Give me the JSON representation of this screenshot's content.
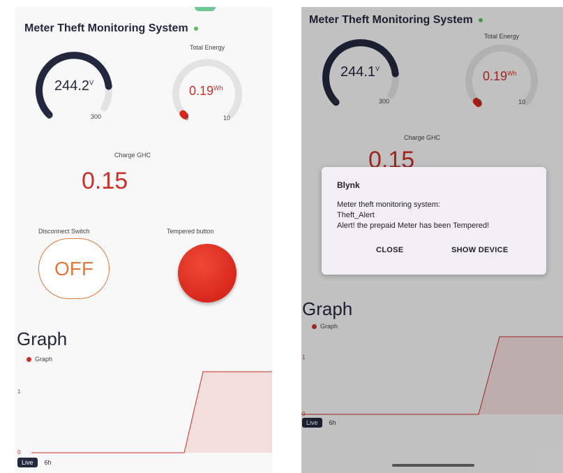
{
  "app": {
    "title": "Meter Theft Monitoring System",
    "status_color": "#5bbf5b",
    "brand_navy": "#23283e",
    "accent_red": "#c8302a",
    "switch_orange": "#e07a3a"
  },
  "screens": [
    {
      "voltage": {
        "value": "244.2",
        "unit": "V",
        "min": "0",
        "max": "300",
        "fraction": 0.81
      },
      "energy": {
        "label": "Total Energy",
        "value": "0.19",
        "unit": "Wh",
        "min": "0",
        "max": "10",
        "fraction": 0.02
      },
      "charge": {
        "label": "Charge GHC",
        "value": "0.15"
      },
      "disconnect_switch": {
        "label": "Disconnect Switch",
        "state": "OFF"
      },
      "tempered_button": {
        "label": "Tempered button"
      },
      "graph": {
        "heading": "Graph",
        "legend": "Graph",
        "tick_1": "1",
        "tick_0": "0",
        "range_live": "Live",
        "range_6h": "6h"
      }
    },
    {
      "voltage": {
        "value": "244.1",
        "unit": "V",
        "min": "0",
        "max": "300",
        "fraction": 0.81
      },
      "energy": {
        "label": "Total Energy",
        "value": "0.19",
        "unit": "Wh",
        "min": "0",
        "max": "10",
        "fraction": 0.02
      },
      "charge": {
        "label": "Charge GHC",
        "value": "0.15"
      },
      "graph": {
        "heading": "Graph",
        "legend": "Graph",
        "tick_1": "1",
        "tick_0": "0",
        "range_live": "Live",
        "range_6h": "6h"
      },
      "dialog": {
        "title": "Blynk",
        "line1": "Meter theft monitoring system:",
        "line2": "Theft_Alert",
        "line3": "Alert! the prepaid Meter has been Tempered!",
        "close": "CLOSE",
        "show_device": "SHOW DEVICE"
      }
    }
  ]
}
